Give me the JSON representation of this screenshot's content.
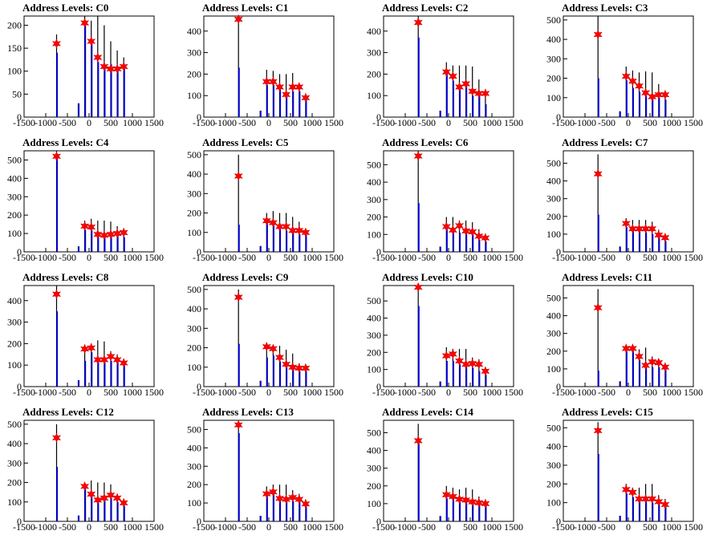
{
  "chart_data": [
    {
      "type": "bar",
      "title": "Address Levels: C0",
      "xlim": [
        -1500,
        1500
      ],
      "ylim": [
        0,
        220
      ],
      "yticks": [
        0,
        50,
        100,
        150,
        200
      ],
      "x": [
        -750,
        -250,
        -100,
        50,
        200,
        350,
        500,
        650,
        800
      ],
      "values": [
        180,
        30,
        220,
        210,
        220,
        200,
        165,
        145,
        130
      ],
      "blue_values": [
        140,
        30,
        210,
        165,
        120,
        110,
        115,
        110,
        110
      ],
      "peaks_x": [
        -750,
        -250,
        -100,
        50,
        200,
        350,
        500,
        650,
        800
      ],
      "peaks_y": [
        160,
        30,
        205,
        165,
        130,
        110,
        105,
        105,
        110
      ]
    },
    {
      "type": "bar",
      "title": "Address Levels: C1",
      "xlim": [
        -1500,
        1500
      ],
      "ylim": [
        0,
        470
      ],
      "yticks": [
        0,
        100,
        200,
        300,
        400
      ],
      "x": [
        -700,
        -200,
        -50,
        100,
        250,
        400,
        550,
        700,
        850
      ],
      "values": [
        470,
        30,
        220,
        215,
        200,
        200,
        205,
        140,
        90
      ],
      "blue_values": [
        230,
        30,
        150,
        150,
        130,
        100,
        120,
        120,
        80
      ],
      "peaks_x": [
        -700,
        -200,
        -50,
        100,
        250,
        400,
        550,
        700,
        850
      ],
      "peaks_y": [
        455,
        30,
        165,
        165,
        140,
        105,
        140,
        140,
        90
      ]
    },
    {
      "type": "bar",
      "title": "Address Levels: C2",
      "xlim": [
        -1500,
        1500
      ],
      "ylim": [
        0,
        470
      ],
      "yticks": [
        0,
        100,
        200,
        300,
        400
      ],
      "x": [
        -700,
        -200,
        -50,
        100,
        250,
        400,
        550,
        700,
        850
      ],
      "values": [
        470,
        30,
        255,
        240,
        240,
        240,
        235,
        175,
        125
      ],
      "blue_values": [
        370,
        30,
        200,
        170,
        130,
        150,
        100,
        100,
        60
      ],
      "peaks_x": [
        -700,
        -200,
        -50,
        100,
        250,
        400,
        550,
        700,
        850
      ],
      "peaks_y": [
        440,
        30,
        210,
        190,
        140,
        155,
        120,
        110,
        110
      ]
    },
    {
      "type": "bar",
      "title": "Address Levels: C3",
      "xlim": [
        -1500,
        1500
      ],
      "ylim": [
        0,
        520
      ],
      "yticks": [
        0,
        100,
        200,
        300,
        400,
        500
      ],
      "x": [
        -700,
        -200,
        -50,
        100,
        250,
        400,
        550,
        700,
        850
      ],
      "values": [
        520,
        30,
        260,
        240,
        230,
        235,
        230,
        170,
        130
      ],
      "blue_values": [
        200,
        30,
        190,
        150,
        130,
        110,
        100,
        100,
        90
      ],
      "peaks_x": [
        -700,
        -200,
        -50,
        100,
        250,
        400,
        550,
        700,
        850
      ],
      "peaks_y": [
        425,
        30,
        210,
        185,
        160,
        125,
        105,
        115,
        115
      ]
    },
    {
      "type": "bar",
      "title": "Address Levels: C4",
      "xlim": [
        -1500,
        1500
      ],
      "ylim": [
        0,
        550
      ],
      "yticks": [
        0,
        100,
        200,
        300,
        400,
        500
      ],
      "x": [
        -750,
        -250,
        -100,
        50,
        200,
        350,
        500,
        650,
        800
      ],
      "values": [
        550,
        30,
        170,
        180,
        170,
        170,
        165,
        140,
        110
      ],
      "blue_values": [
        510,
        30,
        120,
        120,
        110,
        90,
        90,
        90,
        80
      ],
      "peaks_x": [
        -750,
        -250,
        -100,
        50,
        200,
        350,
        500,
        650,
        800
      ],
      "peaks_y": [
        520,
        30,
        140,
        135,
        95,
        90,
        95,
        100,
        105
      ]
    },
    {
      "type": "bar",
      "title": "Address Levels: C5",
      "xlim": [
        -1500,
        1500
      ],
      "ylim": [
        0,
        520
      ],
      "yticks": [
        0,
        100,
        200,
        300,
        400,
        500
      ],
      "x": [
        -700,
        -200,
        -50,
        100,
        250,
        400,
        550,
        700,
        850
      ],
      "values": [
        500,
        30,
        200,
        210,
        200,
        200,
        180,
        155,
        110
      ],
      "blue_values": [
        140,
        30,
        150,
        140,
        120,
        110,
        100,
        90,
        90
      ],
      "peaks_x": [
        -700,
        -200,
        -50,
        100,
        250,
        400,
        550,
        700,
        850
      ],
      "peaks_y": [
        390,
        30,
        160,
        150,
        130,
        130,
        110,
        110,
        100
      ]
    },
    {
      "type": "bar",
      "title": "Address Levels: C6",
      "xlim": [
        -1500,
        1500
      ],
      "ylim": [
        0,
        580
      ],
      "yticks": [
        0,
        100,
        200,
        300,
        400,
        500
      ],
      "x": [
        -700,
        -200,
        -50,
        100,
        250,
        400,
        550,
        700,
        850
      ],
      "values": [
        580,
        30,
        200,
        200,
        180,
        180,
        170,
        130,
        100
      ],
      "blue_values": [
        280,
        30,
        140,
        120,
        110,
        110,
        100,
        70,
        60
      ],
      "peaks_x": [
        -700,
        -200,
        -50,
        100,
        250,
        400,
        550,
        700,
        850
      ],
      "peaks_y": [
        550,
        30,
        145,
        125,
        150,
        120,
        115,
        90,
        80
      ]
    },
    {
      "type": "bar",
      "title": "Address Levels: C7",
      "xlim": [
        -1500,
        1500
      ],
      "ylim": [
        0,
        570
      ],
      "yticks": [
        0,
        100,
        200,
        300,
        400,
        500
      ],
      "x": [
        -700,
        -200,
        -50,
        100,
        250,
        400,
        550,
        700,
        850
      ],
      "values": [
        550,
        30,
        190,
        180,
        180,
        180,
        170,
        125,
        100
      ],
      "blue_values": [
        210,
        30,
        140,
        120,
        120,
        110,
        100,
        80,
        60
      ],
      "peaks_x": [
        -700,
        -200,
        -50,
        100,
        250,
        400,
        550,
        700,
        850
      ],
      "peaks_y": [
        440,
        30,
        160,
        130,
        130,
        130,
        130,
        95,
        80
      ]
    },
    {
      "type": "bar",
      "title": "Address Levels: C8",
      "xlim": [
        -1500,
        1500
      ],
      "ylim": [
        0,
        470
      ],
      "yticks": [
        0,
        100,
        200,
        300,
        400
      ],
      "x": [
        -750,
        -250,
        -100,
        50,
        200,
        350,
        500,
        650,
        800
      ],
      "values": [
        470,
        30,
        195,
        200,
        215,
        210,
        165,
        150,
        120
      ],
      "blue_values": [
        350,
        30,
        120,
        160,
        130,
        120,
        120,
        120,
        100
      ],
      "peaks_x": [
        -750,
        -250,
        -100,
        50,
        200,
        350,
        500,
        650,
        800
      ],
      "peaks_y": [
        430,
        30,
        175,
        180,
        125,
        125,
        140,
        125,
        110
      ]
    },
    {
      "type": "bar",
      "title": "Address Levels: C9",
      "xlim": [
        -1500,
        1500
      ],
      "ylim": [
        0,
        520
      ],
      "yticks": [
        0,
        100,
        200,
        300,
        400,
        500
      ],
      "x": [
        -700,
        -200,
        -50,
        100,
        250,
        400,
        550,
        700,
        850
      ],
      "values": [
        500,
        30,
        200,
        200,
        210,
        190,
        170,
        120,
        100
      ],
      "blue_values": [
        220,
        30,
        150,
        160,
        130,
        110,
        90,
        80,
        80
      ],
      "peaks_x": [
        -700,
        -200,
        -50,
        100,
        250,
        400,
        550,
        700,
        850
      ],
      "peaks_y": [
        460,
        30,
        205,
        195,
        150,
        115,
        100,
        95,
        95
      ]
    },
    {
      "type": "bar",
      "title": "Address Levels: C10",
      "xlim": [
        -1500,
        1500
      ],
      "ylim": [
        0,
        590
      ],
      "yticks": [
        0,
        100,
        200,
        300,
        400,
        500
      ],
      "x": [
        -700,
        -200,
        -50,
        100,
        250,
        400,
        550,
        700,
        850
      ],
      "values": [
        580,
        30,
        230,
        220,
        220,
        220,
        170,
        160,
        100
      ],
      "blue_values": [
        470,
        30,
        150,
        150,
        130,
        130,
        110,
        90,
        70
      ],
      "peaks_x": [
        -700,
        -200,
        -50,
        100,
        250,
        400,
        550,
        700,
        850
      ],
      "peaks_y": [
        580,
        30,
        180,
        190,
        150,
        130,
        135,
        130,
        90
      ]
    },
    {
      "type": "bar",
      "title": "Address Levels: C11",
      "xlim": [
        -1500,
        1500
      ],
      "ylim": [
        0,
        570
      ],
      "yticks": [
        0,
        100,
        200,
        300,
        400,
        500
      ],
      "x": [
        -700,
        -200,
        -50,
        100,
        250,
        400,
        550,
        700,
        850
      ],
      "values": [
        550,
        30,
        220,
        230,
        210,
        220,
        170,
        150,
        120
      ],
      "blue_values": [
        90,
        30,
        200,
        200,
        150,
        110,
        110,
        110,
        100
      ],
      "peaks_x": [
        -700,
        -200,
        -50,
        100,
        250,
        400,
        550,
        700,
        850
      ],
      "peaks_y": [
        445,
        30,
        215,
        215,
        170,
        120,
        140,
        135,
        110
      ]
    },
    {
      "type": "bar",
      "title": "Address Levels: C12",
      "xlim": [
        -1500,
        1500
      ],
      "ylim": [
        0,
        520
      ],
      "yticks": [
        0,
        100,
        200,
        300,
        400,
        500
      ],
      "x": [
        -750,
        -250,
        -100,
        50,
        200,
        350,
        500,
        650,
        800
      ],
      "values": [
        500,
        30,
        200,
        210,
        200,
        200,
        190,
        130,
        110
      ],
      "blue_values": [
        280,
        30,
        170,
        150,
        110,
        110,
        120,
        100,
        80
      ],
      "peaks_x": [
        -750,
        -250,
        -100,
        50,
        200,
        350,
        500,
        650,
        800
      ],
      "peaks_y": [
        430,
        30,
        180,
        140,
        110,
        120,
        135,
        120,
        95
      ]
    },
    {
      "type": "bar",
      "title": "Address Levels: C13",
      "xlim": [
        -1500,
        1500
      ],
      "ylim": [
        0,
        550
      ],
      "yticks": [
        0,
        100,
        200,
        300,
        400,
        500
      ],
      "x": [
        -700,
        -200,
        -50,
        100,
        250,
        400,
        550,
        700,
        850
      ],
      "values": [
        530,
        30,
        190,
        200,
        200,
        200,
        170,
        150,
        120
      ],
      "blue_values": [
        480,
        30,
        140,
        150,
        120,
        120,
        110,
        110,
        90
      ],
      "peaks_x": [
        -700,
        -200,
        -50,
        100,
        250,
        400,
        550,
        700,
        850
      ],
      "peaks_y": [
        525,
        30,
        150,
        160,
        125,
        120,
        130,
        120,
        95
      ]
    },
    {
      "type": "bar",
      "title": "Address Levels: C14",
      "xlim": [
        -1500,
        1500
      ],
      "ylim": [
        0,
        570
      ],
      "yticks": [
        0,
        100,
        200,
        300,
        400,
        500
      ],
      "x": [
        -700,
        -200,
        -50,
        100,
        250,
        400,
        550,
        700,
        850
      ],
      "values": [
        550,
        30,
        200,
        190,
        180,
        190,
        180,
        140,
        120
      ],
      "blue_values": [
        450,
        30,
        130,
        130,
        110,
        110,
        100,
        100,
        90
      ],
      "peaks_x": [
        -700,
        -200,
        -50,
        100,
        250,
        400,
        550,
        700,
        850
      ],
      "peaks_y": [
        455,
        30,
        150,
        140,
        125,
        120,
        110,
        105,
        100
      ]
    },
    {
      "type": "bar",
      "title": "Address Levels: C15",
      "xlim": [
        -1500,
        1500
      ],
      "ylim": [
        0,
        540
      ],
      "yticks": [
        0,
        100,
        200,
        300,
        400,
        500
      ],
      "x": [
        -700,
        -200,
        -50,
        100,
        250,
        400,
        550,
        700,
        850
      ],
      "values": [
        530,
        30,
        200,
        180,
        180,
        200,
        200,
        140,
        120
      ],
      "blue_values": [
        360,
        30,
        150,
        130,
        110,
        110,
        100,
        100,
        80
      ],
      "peaks_x": [
        -700,
        -200,
        -50,
        100,
        250,
        400,
        550,
        700,
        850
      ],
      "peaks_y": [
        485,
        30,
        170,
        155,
        120,
        120,
        120,
        105,
        90
      ]
    }
  ],
  "x_ticks": [
    "-1500",
    "-1000",
    "-500",
    "0",
    "500",
    "1000",
    "1500"
  ],
  "x_tick_values": [
    -1500,
    -1000,
    -500,
    0,
    500,
    1000,
    1500
  ],
  "colors": {
    "bar": "#000000",
    "blue": "#0000ff",
    "marker": "#ff0000",
    "background": "#ffffff"
  }
}
